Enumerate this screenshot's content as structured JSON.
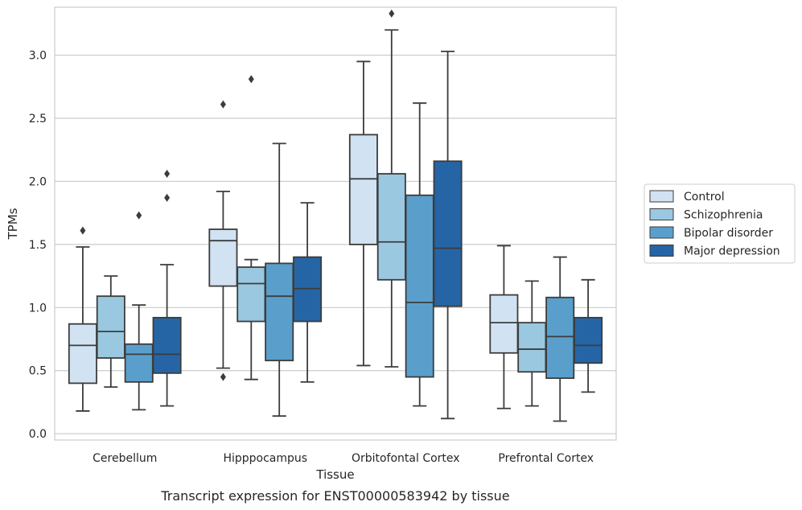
{
  "caption": "Transcript expression for ENST00000583942 by tissue",
  "chart_data": {
    "type": "box",
    "title": "",
    "xlabel": "Tissue",
    "ylabel": "TPMs",
    "ylim": [
      -0.05,
      3.38
    ],
    "yticks": [
      "0.0",
      "0.5",
      "1.0",
      "1.5",
      "2.0",
      "2.5",
      "3.0"
    ],
    "grid": "horizontal",
    "legend_position": "right",
    "categories": [
      "Cerebellum",
      "Hipppocampus",
      "Orbitofontal Cortex",
      "Prefrontal Cortex"
    ],
    "series": [
      {
        "name": "Control",
        "color": "#d1e2f2",
        "boxes": [
          {
            "whislo": 0.18,
            "q1": 0.4,
            "med": 0.7,
            "q3": 0.87,
            "whishi": 1.48,
            "fliers": [
              1.61
            ]
          },
          {
            "whislo": 0.52,
            "q1": 1.17,
            "med": 1.53,
            "q3": 1.62,
            "whishi": 1.92,
            "fliers": [
              2.61,
              0.45
            ]
          },
          {
            "whislo": 0.54,
            "q1": 1.5,
            "med": 2.02,
            "q3": 2.37,
            "whishi": 2.95,
            "fliers": []
          },
          {
            "whislo": 0.2,
            "q1": 0.64,
            "med": 0.88,
            "q3": 1.1,
            "whishi": 1.49,
            "fliers": []
          }
        ]
      },
      {
        "name": "Schizophrenia",
        "color": "#9ac8e0",
        "boxes": [
          {
            "whislo": 0.37,
            "q1": 0.6,
            "med": 0.81,
            "q3": 1.09,
            "whishi": 1.25,
            "fliers": []
          },
          {
            "whislo": 0.43,
            "q1": 0.89,
            "med": 1.19,
            "q3": 1.32,
            "whishi": 1.38,
            "fliers": [
              2.81
            ]
          },
          {
            "whislo": 0.53,
            "q1": 1.22,
            "med": 1.52,
            "q3": 2.06,
            "whishi": 3.2,
            "fliers": [
              3.33
            ]
          },
          {
            "whislo": 0.22,
            "q1": 0.49,
            "med": 0.67,
            "q3": 0.88,
            "whishi": 1.21,
            "fliers": []
          }
        ]
      },
      {
        "name": "Bipolar disorder",
        "color": "#5a9fcc",
        "boxes": [
          {
            "whislo": 0.19,
            "q1": 0.41,
            "med": 0.63,
            "q3": 0.71,
            "whishi": 1.02,
            "fliers": [
              1.73
            ]
          },
          {
            "whislo": 0.14,
            "q1": 0.58,
            "med": 1.09,
            "q3": 1.35,
            "whishi": 2.3,
            "fliers": []
          },
          {
            "whislo": 0.22,
            "q1": 0.45,
            "med": 1.04,
            "q3": 1.89,
            "whishi": 2.62,
            "fliers": []
          },
          {
            "whislo": 0.1,
            "q1": 0.44,
            "med": 0.77,
            "q3": 1.08,
            "whishi": 1.4,
            "fliers": []
          }
        ]
      },
      {
        "name": "Major depression",
        "color": "#2565a6",
        "boxes": [
          {
            "whislo": 0.22,
            "q1": 0.48,
            "med": 0.63,
            "q3": 0.92,
            "whishi": 1.34,
            "fliers": [
              1.87,
              2.06
            ]
          },
          {
            "whislo": 0.41,
            "q1": 0.89,
            "med": 1.15,
            "q3": 1.4,
            "whishi": 1.83,
            "fliers": []
          },
          {
            "whislo": 0.12,
            "q1": 1.01,
            "med": 1.47,
            "q3": 2.16,
            "whishi": 3.03,
            "fliers": []
          },
          {
            "whislo": 0.33,
            "q1": 0.56,
            "med": 0.7,
            "q3": 0.92,
            "whishi": 1.22,
            "fliers": []
          }
        ]
      }
    ]
  }
}
